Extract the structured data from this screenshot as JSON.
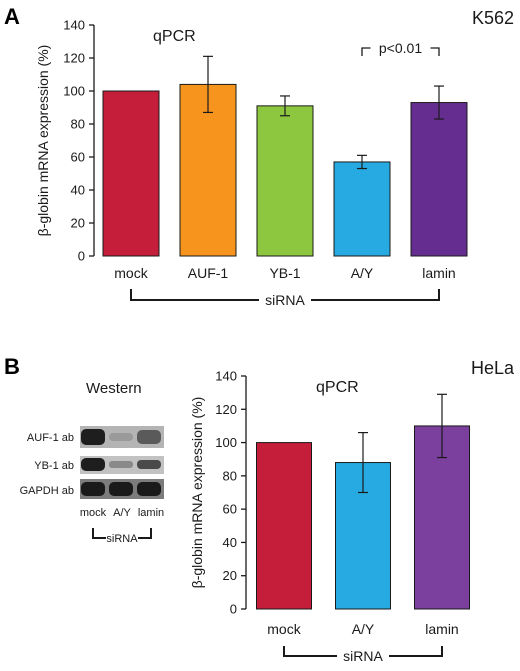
{
  "panel_a": {
    "letter": "A",
    "cell_line": "K562"
  },
  "panel_b": {
    "letter": "B",
    "cell_line": "HeLa",
    "western": {
      "title": "Western",
      "rows": [
        "AUF-1 ab",
        "YB-1 ab",
        "GAPDH ab"
      ],
      "lanes": [
        "mock",
        "A/Y",
        "lamin"
      ],
      "group_label": "siRNA"
    }
  },
  "chart_data": [
    {
      "type": "bar",
      "title": "qPCR",
      "ylabel": "β-globin mRNA expression (%)",
      "xlabel": "siRNA",
      "ylim": [
        0,
        140
      ],
      "yticks": [
        0,
        20,
        40,
        60,
        80,
        100,
        120,
        140
      ],
      "grid": false,
      "categories": [
        "mock",
        "AUF-1",
        "YB-1",
        "A/Y",
        "lamin"
      ],
      "values": [
        100,
        104,
        91,
        57,
        93
      ],
      "error": [
        0,
        17,
        6,
        4,
        10
      ],
      "colors": [
        "#c41e3a",
        "#f7941d",
        "#8dc63f",
        "#27aae1",
        "#662d91"
      ],
      "annotation": {
        "text": "p<0.01",
        "between": [
          "A/Y",
          "lamin"
        ]
      }
    },
    {
      "type": "bar",
      "title": "qPCR",
      "ylabel": "β-globin mRNA expression (%)",
      "xlabel": "siRNA",
      "ylim": [
        0,
        140
      ],
      "yticks": [
        0,
        20,
        40,
        60,
        80,
        100,
        120,
        140
      ],
      "grid": false,
      "categories": [
        "mock",
        "A/Y",
        "lamin"
      ],
      "values": [
        100,
        88,
        110
      ],
      "error": [
        0,
        18,
        19
      ],
      "colors": [
        "#c41e3a",
        "#27aae1",
        "#7b3f9e"
      ]
    }
  ]
}
